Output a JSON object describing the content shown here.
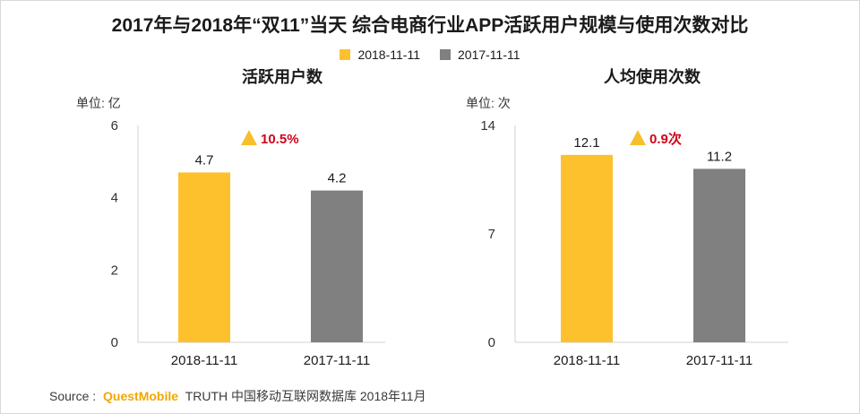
{
  "title": "2017年与2018年“双11”当天 综合电商行业APP活跃用户规模与使用次数对比",
  "legend": [
    {
      "label": "2018-11-11",
      "color": "#FDC12E"
    },
    {
      "label": "2017-11-11",
      "color": "#808080"
    }
  ],
  "colors": {
    "highlight": "#FDC12E",
    "neutral": "#808080",
    "growth_text": "#D0021B",
    "growth_icon": "#F5C02C"
  },
  "source": {
    "prefix": "Source :",
    "brand": "QuestMobile",
    "suffix": "TRUTH 中国移动互联网数据库 2018年11月"
  },
  "chart_data": [
    {
      "type": "bar",
      "title": "活跃用户数",
      "unit_label": "单位: 亿",
      "categories": [
        "2018-11-11",
        "2017-11-11"
      ],
      "values": [
        4.7,
        4.2
      ],
      "value_labels": [
        "4.7",
        "4.2"
      ],
      "ylim": [
        0,
        6
      ],
      "yticks": [
        0,
        2,
        4,
        6
      ],
      "growth": "10.5%"
    },
    {
      "type": "bar",
      "title": "人均使用次数",
      "unit_label": "单位: 次",
      "categories": [
        "2018-11-11",
        "2017-11-11"
      ],
      "values": [
        12.1,
        11.2
      ],
      "value_labels": [
        "12.1",
        "11.2"
      ],
      "ylim": [
        0,
        14
      ],
      "yticks": [
        0,
        7,
        14
      ],
      "growth": "0.9次"
    }
  ]
}
